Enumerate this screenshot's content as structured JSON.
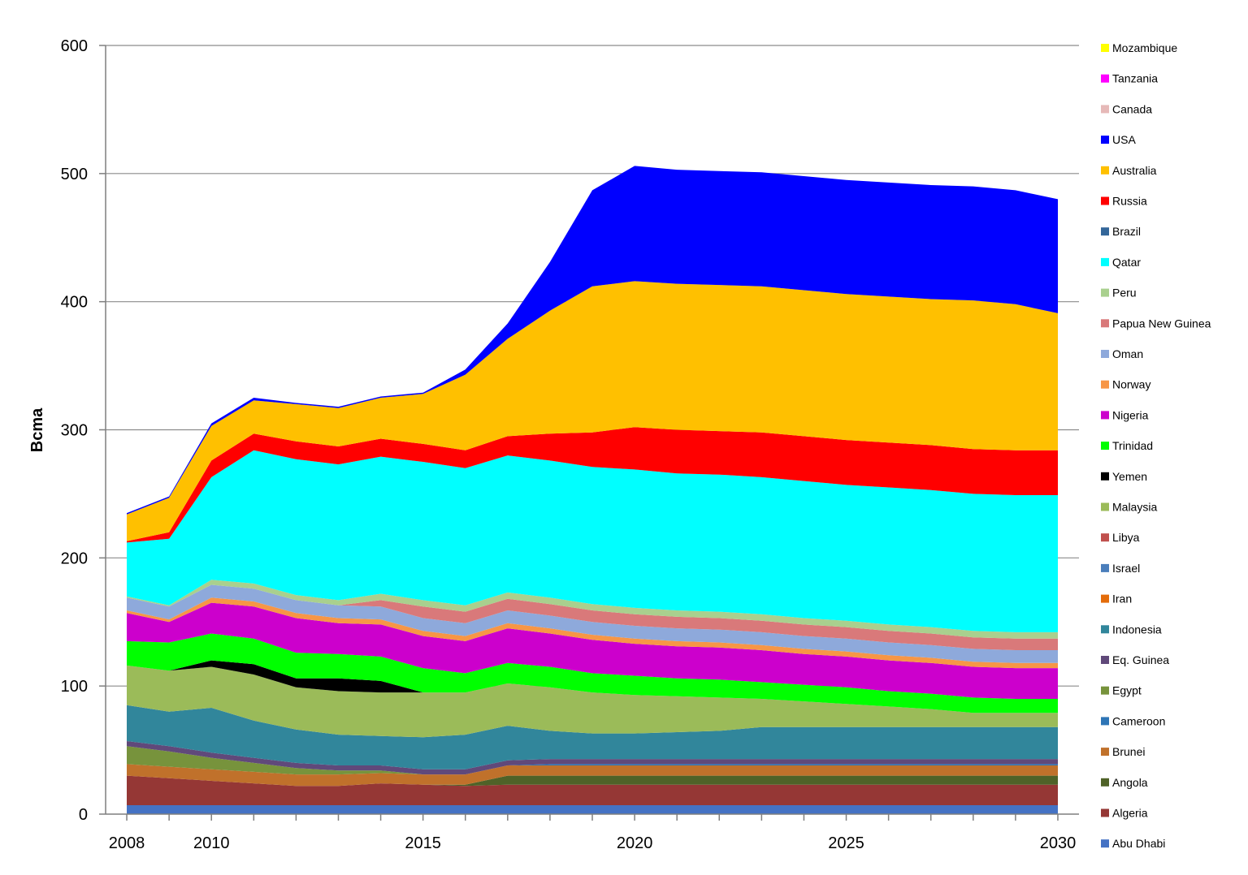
{
  "chart_data": {
    "type": "area",
    "stacked": true,
    "title": "",
    "xlabel": "",
    "ylabel": "Bcma",
    "xlim": [
      2007.5,
      2030.5
    ],
    "ylim": [
      0,
      600
    ],
    "yticks": [
      0,
      100,
      200,
      300,
      400,
      500,
      600
    ],
    "xticks": [
      2008,
      2010,
      2015,
      2020,
      2025,
      2030
    ],
    "grid": true,
    "legend_position": "right",
    "x": [
      2008,
      2009,
      2010,
      2011,
      2012,
      2013,
      2014,
      2015,
      2016,
      2017,
      2018,
      2019,
      2020,
      2021,
      2022,
      2023,
      2024,
      2025,
      2026,
      2027,
      2028,
      2029,
      2030
    ],
    "series": [
      {
        "name": "Abu Dhabi",
        "color": "#4472C4",
        "values": [
          7,
          7,
          7,
          7,
          7,
          7,
          7,
          7,
          7,
          7,
          7,
          7,
          7,
          7,
          7,
          7,
          7,
          7,
          7,
          7,
          7,
          7,
          7
        ]
      },
      {
        "name": "Algeria",
        "color": "#953735",
        "values": [
          23,
          21,
          19,
          17,
          15,
          15,
          17,
          16,
          15,
          16,
          16,
          16,
          16,
          16,
          16,
          16,
          16,
          16,
          16,
          16,
          16,
          16,
          16
        ]
      },
      {
        "name": "Angola",
        "color": "#4F6228",
        "values": [
          0,
          0,
          0,
          0,
          0,
          0,
          0,
          0,
          1,
          7,
          7,
          7,
          7,
          7,
          7,
          7,
          7,
          7,
          7,
          7,
          7,
          7,
          7
        ]
      },
      {
        "name": "Brunei",
        "color": "#C0712B",
        "values": [
          9,
          9,
          9,
          9,
          9,
          9,
          8,
          8,
          8,
          8,
          8,
          8,
          8,
          8,
          8,
          8,
          8,
          8,
          8,
          8,
          8,
          8,
          8
        ]
      },
      {
        "name": "Cameroon",
        "color": "#2E75B6",
        "values": [
          0,
          0,
          0,
          0,
          0,
          0,
          0,
          0,
          0,
          0,
          1,
          1,
          1,
          1,
          1,
          1,
          1,
          1,
          1,
          1,
          1,
          1,
          1
        ]
      },
      {
        "name": "Egypt",
        "color": "#77933C",
        "values": [
          14,
          12,
          9,
          7,
          5,
          3,
          2,
          0,
          0,
          0,
          0,
          0,
          0,
          0,
          0,
          0,
          0,
          0,
          0,
          0,
          0,
          0,
          0
        ]
      },
      {
        "name": "Eq. Guinea",
        "color": "#60497A",
        "values": [
          4,
          4,
          4,
          4,
          4,
          4,
          4,
          4,
          4,
          4,
          4,
          4,
          4,
          4,
          4,
          4,
          4,
          4,
          4,
          4,
          4,
          4,
          4
        ]
      },
      {
        "name": "Indonesia",
        "color": "#31869B",
        "values": [
          28,
          27,
          35,
          29,
          26,
          24,
          23,
          25,
          27,
          27,
          22,
          20,
          20,
          21,
          22,
          25,
          25,
          25,
          25,
          25,
          25,
          25,
          25
        ]
      },
      {
        "name": "Iran",
        "color": "#E46C0A",
        "values": [
          0,
          0,
          0,
          0,
          0,
          0,
          0,
          0,
          0,
          0,
          0,
          0,
          0,
          0,
          0,
          0,
          0,
          0,
          0,
          0,
          0,
          0,
          0
        ]
      },
      {
        "name": "Israel",
        "color": "#4A7EBB",
        "values": [
          0,
          0,
          0,
          0,
          0,
          0,
          0,
          0,
          0,
          0,
          0,
          0,
          0,
          0,
          0,
          0,
          0,
          0,
          0,
          0,
          0,
          0,
          0
        ]
      },
      {
        "name": "Libya",
        "color": "#C0504D",
        "values": [
          0,
          0,
          0,
          0,
          0,
          0,
          0,
          0,
          0,
          0,
          0,
          0,
          0,
          0,
          0,
          0,
          0,
          0,
          0,
          0,
          0,
          0,
          0
        ]
      },
      {
        "name": "Malaysia",
        "color": "#9BBB59",
        "values": [
          31,
          32,
          32,
          36,
          33,
          34,
          34,
          35,
          33,
          33,
          34,
          32,
          30,
          28,
          26,
          22,
          20,
          18,
          16,
          14,
          11,
          11,
          11
        ]
      },
      {
        "name": "Yemen",
        "color": "#000000",
        "values": [
          0,
          0,
          5,
          8,
          7,
          10,
          9,
          0,
          0,
          0,
          0,
          0,
          0,
          0,
          0,
          0,
          0,
          0,
          0,
          0,
          0,
          0,
          0
        ]
      },
      {
        "name": "Trinidad",
        "color": "#00FF00",
        "values": [
          19,
          22,
          21,
          20,
          20,
          19,
          19,
          19,
          15,
          16,
          16,
          15,
          15,
          14,
          14,
          13,
          13,
          13,
          12,
          12,
          12,
          11,
          11
        ]
      },
      {
        "name": "Nigeria",
        "color": "#CC00CC",
        "values": [
          22,
          16,
          24,
          25,
          27,
          24,
          25,
          25,
          25,
          27,
          26,
          26,
          25,
          25,
          25,
          25,
          24,
          24,
          24,
          24,
          24,
          24,
          24
        ]
      },
      {
        "name": "Norway",
        "color": "#F79646",
        "values": [
          2,
          2,
          4,
          4,
          4,
          4,
          4,
          4,
          4,
          4,
          4,
          4,
          4,
          4,
          4,
          4,
          4,
          4,
          4,
          4,
          4,
          4,
          4
        ]
      },
      {
        "name": "Oman",
        "color": "#8EA9DB",
        "values": [
          10,
          10,
          10,
          10,
          10,
          10,
          10,
          10,
          10,
          10,
          10,
          10,
          10,
          10,
          10,
          10,
          10,
          10,
          10,
          10,
          10,
          10,
          10
        ]
      },
      {
        "name": "Papua New Guinea",
        "color": "#D9797A",
        "values": [
          0,
          0,
          0,
          0,
          0,
          0,
          5,
          9,
          9,
          9,
          9,
          9,
          9,
          9,
          9,
          9,
          9,
          9,
          9,
          9,
          9,
          9,
          9
        ]
      },
      {
        "name": "Peru",
        "color": "#A9D08E",
        "values": [
          1,
          1,
          4,
          4,
          4,
          4,
          5,
          5,
          5,
          5,
          5,
          5,
          5,
          5,
          5,
          5,
          5,
          5,
          5,
          5,
          5,
          5,
          5
        ]
      },
      {
        "name": "Qatar",
        "color": "#00FFFF",
        "values": [
          42,
          52,
          80,
          104,
          106,
          106,
          107,
          108,
          107,
          107,
          107,
          107,
          108,
          107,
          107,
          107,
          107,
          106,
          107,
          107,
          107,
          107,
          107
        ]
      },
      {
        "name": "Brazil",
        "color": "#336699",
        "values": [
          0,
          0,
          0,
          0,
          0,
          0,
          0,
          0,
          0,
          0,
          0,
          0,
          0,
          0,
          0,
          0,
          0,
          0,
          0,
          0,
          0,
          0,
          0
        ]
      },
      {
        "name": "Russia",
        "color": "#FF0000",
        "values": [
          1,
          5,
          13,
          13,
          14,
          14,
          14,
          14,
          14,
          15,
          21,
          27,
          33,
          34,
          34,
          35,
          35,
          35,
          35,
          35,
          35,
          35,
          35
        ]
      },
      {
        "name": "Australia",
        "color": "#FFC000",
        "values": [
          21,
          27,
          27,
          26,
          29,
          30,
          32,
          39,
          59,
          76,
          96,
          114,
          114,
          114,
          114,
          114,
          114,
          114,
          114,
          114,
          116,
          114,
          107
        ]
      },
      {
        "name": "USA",
        "color": "#0000FF",
        "values": [
          1,
          1,
          2,
          2,
          1,
          1,
          1,
          1,
          4,
          12,
          38,
          75,
          90,
          89,
          89,
          89,
          89,
          89,
          89,
          89,
          89,
          89,
          89
        ]
      },
      {
        "name": "Canada",
        "color": "#E6B9B8",
        "values": [
          0,
          0,
          0,
          0,
          0,
          0,
          0,
          0,
          0,
          0,
          0,
          0,
          0,
          0,
          0,
          0,
          0,
          0,
          0,
          0,
          0,
          0,
          0
        ]
      },
      {
        "name": "Tanzania",
        "color": "#FF00FF",
        "values": [
          0,
          0,
          0,
          0,
          0,
          0,
          0,
          0,
          0,
          0,
          0,
          0,
          0,
          0,
          0,
          0,
          0,
          0,
          0,
          0,
          0,
          0,
          0
        ]
      },
      {
        "name": "Mozambique",
        "color": "#FFFF00",
        "values": [
          0,
          0,
          0,
          0,
          0,
          0,
          0,
          0,
          0,
          0,
          0,
          0,
          0,
          0,
          0,
          0,
          0,
          0,
          0,
          0,
          0,
          0,
          0
        ]
      }
    ]
  }
}
